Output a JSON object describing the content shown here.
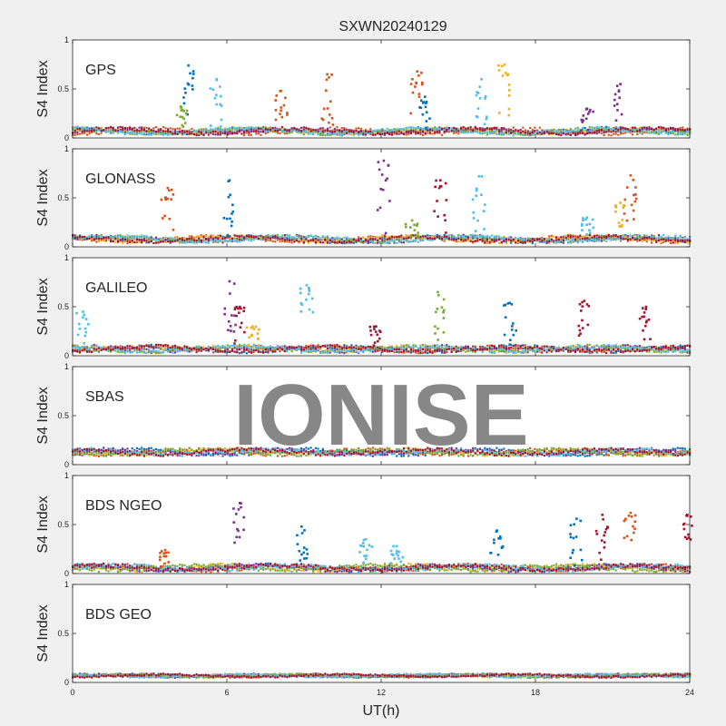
{
  "figure": {
    "title": "SXWN20240129",
    "watermark": "IONISE"
  },
  "chart_data": {
    "type": "scatter",
    "title": "SXWN20240129",
    "xlabel": "UT(h)",
    "ylabel": "S4 Index",
    "xlim": [
      0,
      24
    ],
    "ylim": [
      0,
      1
    ],
    "x_ticks": [
      "0",
      "6",
      "12",
      "18",
      "24"
    ],
    "y_ticks": [
      "0",
      "0.5",
      "1"
    ],
    "grid": false,
    "legend": "none",
    "colors": [
      "#0072bd",
      "#d95319",
      "#edb120",
      "#7e2f8e",
      "#77ac30",
      "#4dbeee",
      "#a2142f"
    ],
    "panels": [
      {
        "name": "GPS",
        "baseline": 0.07,
        "noise": 0.04,
        "spikes": [
          {
            "x": 4.5,
            "y": 0.74,
            "color": "#0072bd"
          },
          {
            "x": 5.6,
            "y": 0.6,
            "color": "#4dbeee"
          },
          {
            "x": 8.1,
            "y": 0.48,
            "color": "#d95319"
          },
          {
            "x": 9.9,
            "y": 0.65,
            "color": "#d95319"
          },
          {
            "x": 13.4,
            "y": 0.68,
            "color": "#d95319"
          },
          {
            "x": 13.7,
            "y": 0.42,
            "color": "#0072bd"
          },
          {
            "x": 15.9,
            "y": 0.6,
            "color": "#4dbeee"
          },
          {
            "x": 16.8,
            "y": 0.75,
            "color": "#edb120"
          },
          {
            "x": 21.3,
            "y": 0.55,
            "color": "#7e2f8e"
          },
          {
            "x": 4.2,
            "y": 0.32,
            "color": "#77ac30"
          },
          {
            "x": 20.0,
            "y": 0.3,
            "color": "#7e2f8e"
          }
        ]
      },
      {
        "name": "GLONASS",
        "baseline": 0.08,
        "noise": 0.04,
        "spikes": [
          {
            "x": 3.7,
            "y": 0.6,
            "color": "#d95319"
          },
          {
            "x": 6.1,
            "y": 0.68,
            "color": "#0072bd"
          },
          {
            "x": 12.1,
            "y": 0.88,
            "color": "#7e2f8e"
          },
          {
            "x": 14.3,
            "y": 0.68,
            "color": "#a2142f"
          },
          {
            "x": 15.8,
            "y": 0.72,
            "color": "#4dbeee"
          },
          {
            "x": 20.0,
            "y": 0.3,
            "color": "#4dbeee"
          },
          {
            "x": 21.7,
            "y": 0.73,
            "color": "#d95319"
          },
          {
            "x": 21.3,
            "y": 0.45,
            "color": "#edb120"
          },
          {
            "x": 13.2,
            "y": 0.27,
            "color": "#77ac30"
          }
        ]
      },
      {
        "name": "GALILEO",
        "baseline": 0.07,
        "noise": 0.04,
        "spikes": [
          {
            "x": 0.4,
            "y": 0.45,
            "color": "#4dbeee"
          },
          {
            "x": 6.1,
            "y": 0.76,
            "color": "#7e2f8e"
          },
          {
            "x": 6.5,
            "y": 0.5,
            "color": "#a2142f"
          },
          {
            "x": 9.1,
            "y": 0.72,
            "color": "#4dbeee"
          },
          {
            "x": 11.8,
            "y": 0.3,
            "color": "#a2142f"
          },
          {
            "x": 14.2,
            "y": 0.65,
            "color": "#77ac30"
          },
          {
            "x": 17.0,
            "y": 0.54,
            "color": "#0072bd"
          },
          {
            "x": 19.9,
            "y": 0.56,
            "color": "#a2142f"
          },
          {
            "x": 22.3,
            "y": 0.5,
            "color": "#a2142f"
          },
          {
            "x": 7.0,
            "y": 0.3,
            "color": "#edb120"
          }
        ]
      },
      {
        "name": "SBAS",
        "baseline": 0.13,
        "noise": 0.04,
        "spikes": []
      },
      {
        "name": "BDS NGEO",
        "baseline": 0.06,
        "noise": 0.04,
        "spikes": [
          {
            "x": 3.6,
            "y": 0.24,
            "color": "#d95319"
          },
          {
            "x": 6.5,
            "y": 0.72,
            "color": "#7e2f8e"
          },
          {
            "x": 8.9,
            "y": 0.48,
            "color": "#0072bd"
          },
          {
            "x": 11.4,
            "y": 0.35,
            "color": "#4dbeee"
          },
          {
            "x": 12.6,
            "y": 0.28,
            "color": "#4dbeee"
          },
          {
            "x": 16.5,
            "y": 0.44,
            "color": "#0072bd"
          },
          {
            "x": 19.6,
            "y": 0.56,
            "color": "#0072bd"
          },
          {
            "x": 20.6,
            "y": 0.6,
            "color": "#a2142f"
          },
          {
            "x": 21.7,
            "y": 0.62,
            "color": "#d95319"
          },
          {
            "x": 23.9,
            "y": 0.6,
            "color": "#a2142f"
          }
        ]
      },
      {
        "name": "BDS GEO",
        "baseline": 0.07,
        "noise": 0.02,
        "spikes": []
      }
    ]
  }
}
